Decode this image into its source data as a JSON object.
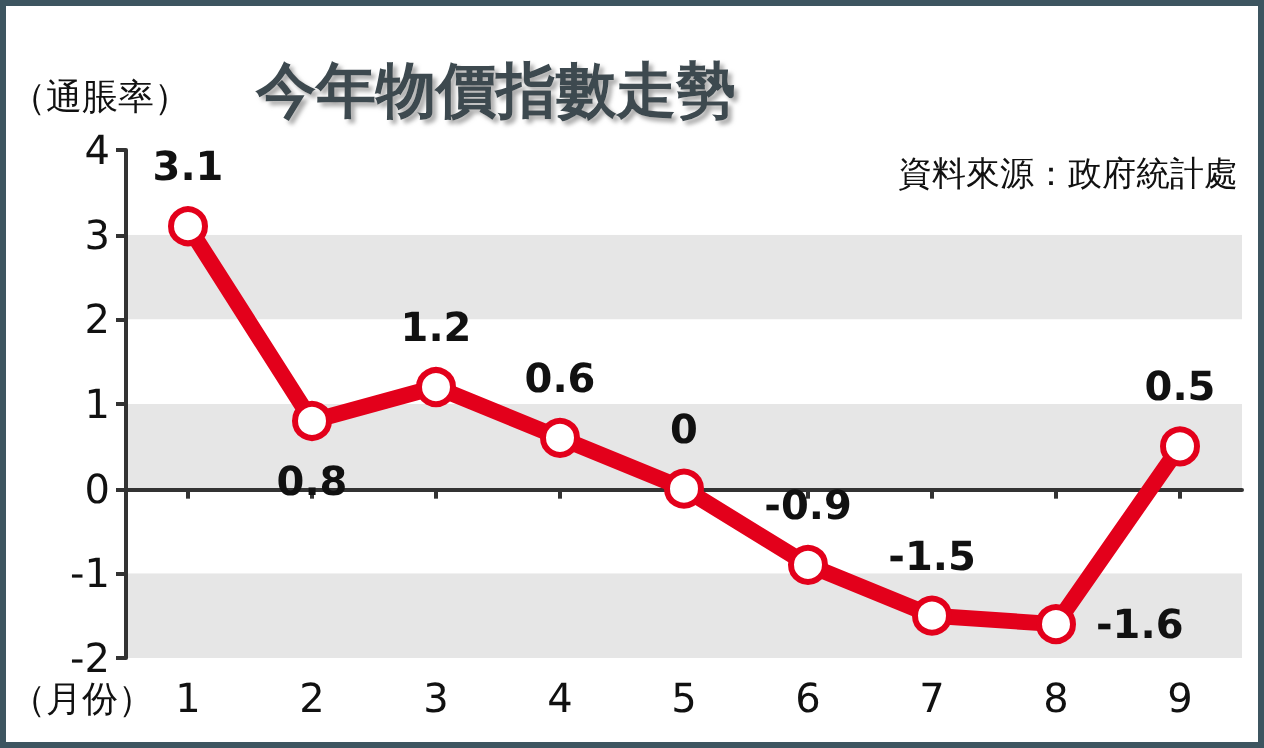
{
  "chart_data": {
    "type": "line",
    "title": "今年物價指數走勢",
    "ylabel": "（通脹率）",
    "xlabel": "（月份）",
    "annotations": [
      "資料來源：政府統計處"
    ],
    "categories": [
      "1",
      "2",
      "3",
      "4",
      "5",
      "6",
      "7",
      "8",
      "9"
    ],
    "series": [
      {
        "color": "#e3001b",
        "values": [
          3.1,
          0.8,
          1.2,
          0.6,
          0,
          -0.9,
          -1.5,
          -1.6,
          0.5
        ]
      }
    ],
    "ylim": [
      -2,
      4
    ],
    "yticks": [
      -2,
      -1,
      0,
      1,
      2,
      3,
      4
    ],
    "grid": "y",
    "marker": "circle",
    "line_style": "solid",
    "data_labels": true
  }
}
